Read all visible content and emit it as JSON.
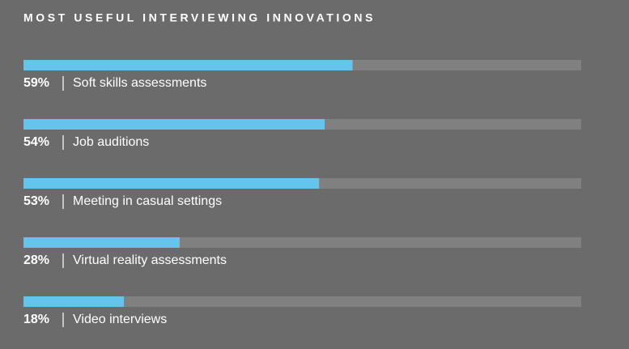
{
  "chart_data": {
    "type": "bar",
    "orientation": "horizontal",
    "title": "MOST USEFUL INTERVIEWING INNOVATIONS",
    "categories": [
      "Soft skills assessments",
      "Job auditions",
      "Meeting in casual settings",
      "Virtual reality assessments",
      "Video interviews"
    ],
    "values": [
      59,
      54,
      53,
      28,
      18
    ],
    "value_labels": [
      "59%",
      "54%",
      "53%",
      "28%",
      "18%"
    ],
    "color": "#64c4eb",
    "track_color": "#808080",
    "xlim": [
      0,
      100
    ]
  }
}
